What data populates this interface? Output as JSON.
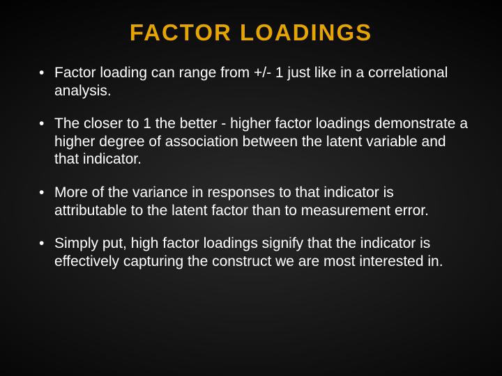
{
  "slide": {
    "title": "FACTOR LOADINGS",
    "bullets": [
      "Factor loading can range from +/- 1 just like in a correlational analysis.",
      "The closer to 1 the better - higher factor loadings demonstrate a higher degree of association between the latent variable and that indicator.",
      "More of the variance in responses to that indicator is attributable to the latent factor than to measurement error.",
      "Simply put, high factor loadings signify that the indicator is effectively capturing the construct we are most interested in."
    ]
  },
  "style": {
    "title_color": "#e5a400",
    "title_fontsize": 33,
    "title_fontweight": 900,
    "title_letterspacing": "2px",
    "text_color": "#ffffff",
    "bullet_fontsize": 21,
    "bullet_lineheight": 1.22,
    "bullet_spacing": 22,
    "background_gradient": {
      "type": "radial",
      "center": "50% 55%",
      "stops": [
        "#2a2a2a",
        "#1a1a1a",
        "#000000"
      ]
    },
    "slide_width": 720,
    "slide_height": 540
  }
}
